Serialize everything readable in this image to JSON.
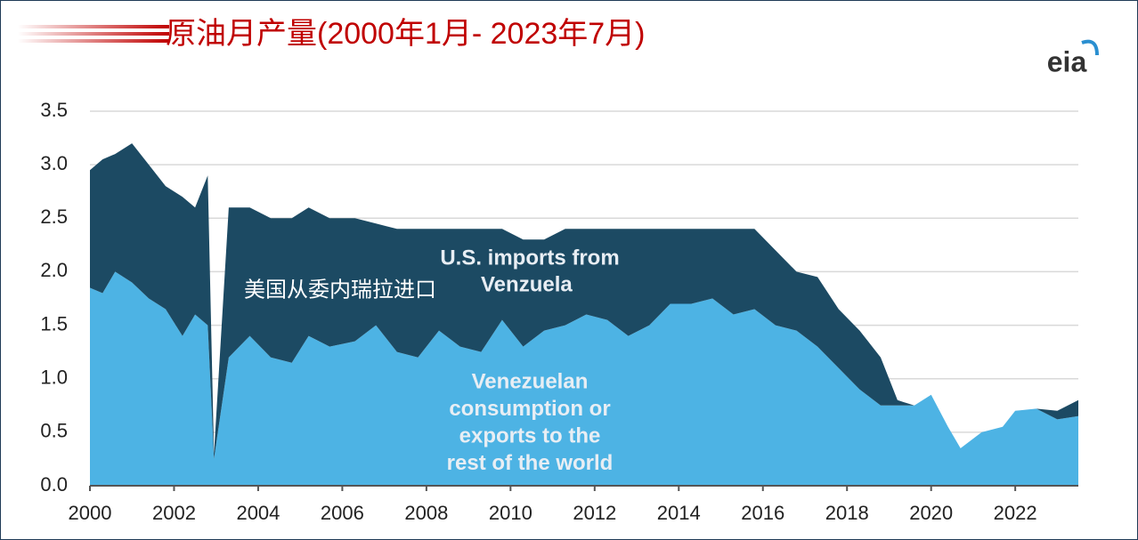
{
  "chart_data": {
    "type": "stacked_area",
    "title": "原油月产量(2000年1月- 2023年7月)",
    "logo": "eia",
    "x": [
      2000.0,
      2000.3,
      2000.6,
      2001.0,
      2001.4,
      2001.8,
      2002.2,
      2002.5,
      2002.8,
      2002.95,
      2003.3,
      2003.8,
      2004.3,
      2004.8,
      2005.2,
      2005.7,
      2006.3,
      2006.8,
      2007.3,
      2007.8,
      2008.3,
      2008.8,
      2009.3,
      2009.8,
      2010.3,
      2010.8,
      2011.3,
      2011.8,
      2012.3,
      2012.8,
      2013.3,
      2013.8,
      2014.3,
      2014.8,
      2015.3,
      2015.8,
      2016.3,
      2016.8,
      2017.3,
      2017.8,
      2018.3,
      2018.8,
      2019.2,
      2019.6,
      2020.0,
      2020.4,
      2020.7,
      2021.2,
      2021.7,
      2022.0,
      2022.5,
      2023.0,
      2023.5
    ],
    "series": [
      {
        "color": "#4db3e4",
        "values": [
          1.85,
          1.8,
          2.0,
          1.9,
          1.75,
          1.65,
          1.4,
          1.6,
          1.5,
          0.25,
          1.2,
          1.4,
          1.2,
          1.15,
          1.4,
          1.3,
          1.35,
          1.5,
          1.25,
          1.2,
          1.45,
          1.3,
          1.25,
          1.55,
          1.3,
          1.45,
          1.5,
          1.6,
          1.55,
          1.4,
          1.5,
          1.7,
          1.7,
          1.75,
          1.6,
          1.65,
          1.5,
          1.45,
          1.3,
          1.1,
          0.9,
          0.75,
          0.75,
          0.75,
          0.85,
          0.55,
          0.35,
          0.5,
          0.55,
          0.7,
          0.72,
          0.62,
          0.65
        ]
      },
      {
        "color": "#1c4a63",
        "values": [
          1.1,
          1.25,
          1.1,
          1.3,
          1.25,
          1.15,
          1.3,
          1.0,
          1.4,
          0.05,
          1.4,
          1.2,
          1.3,
          1.35,
          1.2,
          1.2,
          1.15,
          0.95,
          1.15,
          1.2,
          0.95,
          1.1,
          1.15,
          0.85,
          1.0,
          0.85,
          0.9,
          0.8,
          0.85,
          1.0,
          0.9,
          0.7,
          0.7,
          0.65,
          0.8,
          0.75,
          0.7,
          0.55,
          0.65,
          0.55,
          0.55,
          0.45,
          0.05,
          0,
          0,
          0,
          0,
          0,
          0,
          0,
          0,
          0.08,
          0.15
        ]
      }
    ],
    "annotations": [
      {
        "lines": [
          "U.S. imports from",
          "Venzuela"
        ]
      },
      {
        "lines": [
          "美国从委内瑞拉进口"
        ]
      },
      {
        "lines": [
          "Venezuelan",
          "consumption or",
          "exports to the",
          "rest of the world"
        ]
      }
    ],
    "xlim": [
      2000,
      2023.5
    ],
    "xticks": [
      2000,
      2002,
      2004,
      2006,
      2008,
      2010,
      2012,
      2014,
      2016,
      2018,
      2020,
      2022
    ],
    "ylim": [
      0,
      3.5
    ],
    "yticks": [
      {
        "value": 0,
        "label": "0.0"
      },
      0.5,
      {
        "value": 1,
        "label": "1.0"
      },
      1.5,
      {
        "value": 2,
        "label": "2.0"
      },
      2.5,
      {
        "value": 3,
        "label": "3.0"
      },
      3.5
    ],
    "grid": true
  }
}
